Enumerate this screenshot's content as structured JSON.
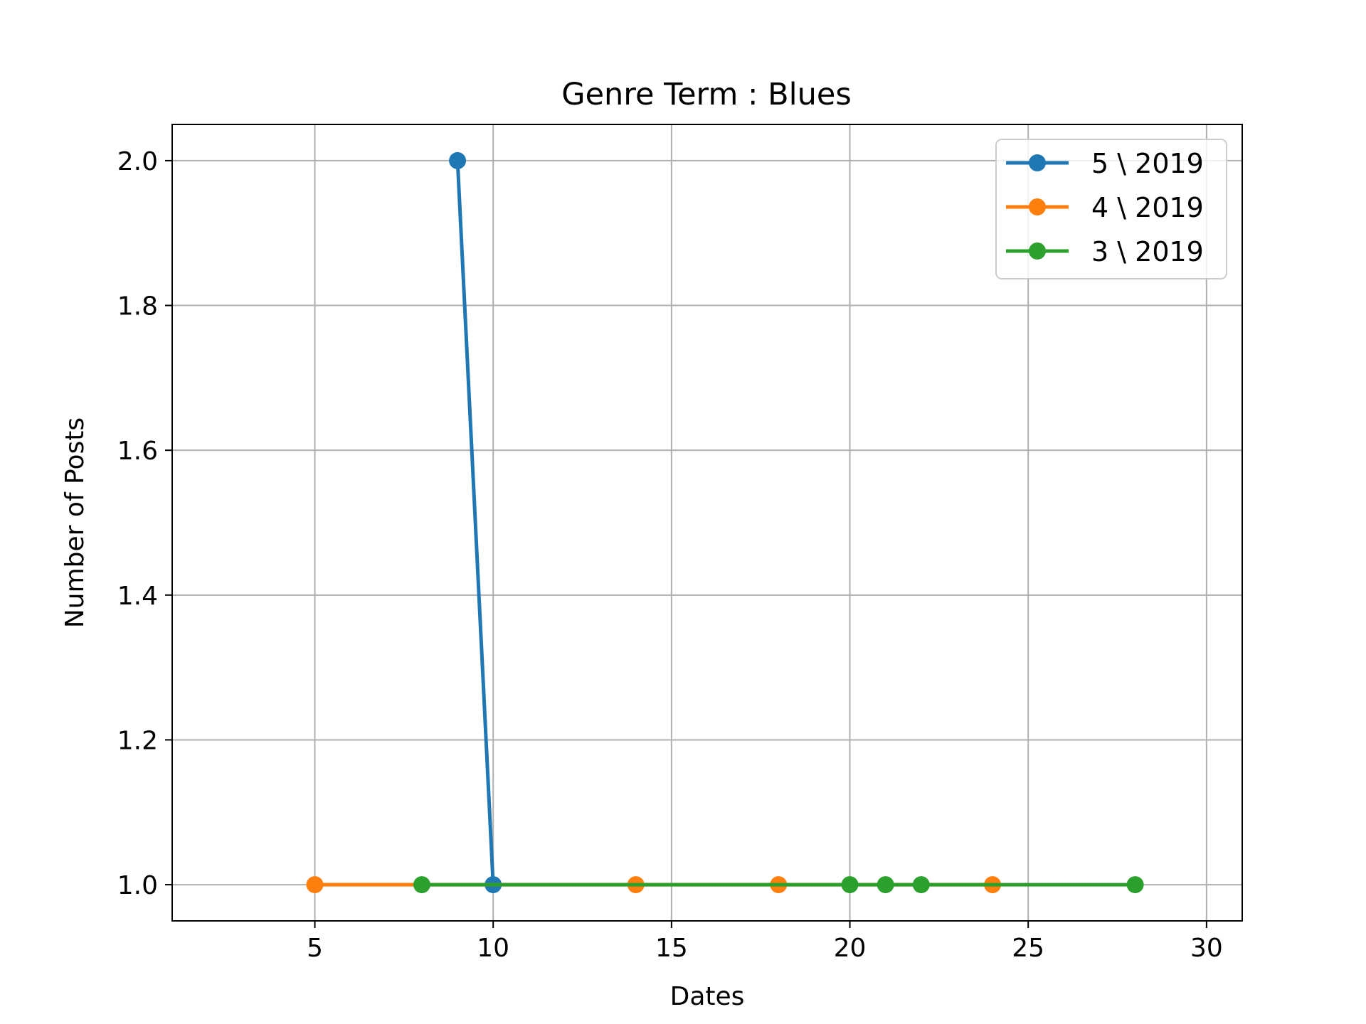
{
  "chart_data": {
    "type": "line",
    "title": "Genre Term : Blues",
    "xlabel": "Dates",
    "ylabel": "Number of Posts",
    "xlim": [
      1,
      31
    ],
    "ylim": [
      0.95,
      2.05
    ],
    "xticks": [
      5,
      10,
      15,
      20,
      25,
      30
    ],
    "yticks": [
      1.0,
      1.2,
      1.4,
      1.6,
      1.8,
      2.0
    ],
    "xtick_labels": [
      "5",
      "10",
      "15",
      "20",
      "25",
      "30"
    ],
    "ytick_labels": [
      "1.0",
      "1.2",
      "1.4",
      "1.6",
      "1.8",
      "2.0"
    ],
    "grid": true,
    "legend_position": "top-right",
    "series": [
      {
        "name": "5 \\ 2019",
        "color": "#1f77b4",
        "x": [
          9,
          10
        ],
        "y": [
          2,
          1
        ]
      },
      {
        "name": "4 \\ 2019",
        "color": "#ff7f0e",
        "x": [
          5,
          14,
          18,
          24
        ],
        "y": [
          1,
          1,
          1,
          1
        ]
      },
      {
        "name": "3 \\ 2019",
        "color": "#2ca02c",
        "x": [
          8,
          20,
          21,
          22,
          28
        ],
        "y": [
          1,
          1,
          1,
          1,
          1
        ]
      }
    ]
  }
}
